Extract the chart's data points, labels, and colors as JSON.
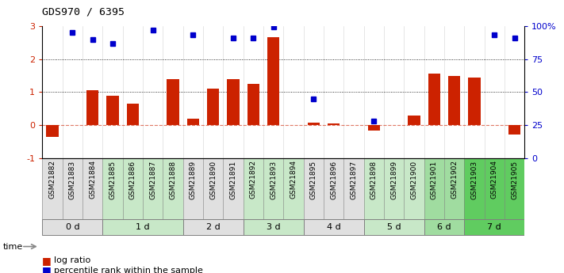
{
  "title": "GDS970 / 6395",
  "samples": [
    "GSM21882",
    "GSM21883",
    "GSM21884",
    "GSM21885",
    "GSM21886",
    "GSM21887",
    "GSM21888",
    "GSM21889",
    "GSM21890",
    "GSM21891",
    "GSM21892",
    "GSM21893",
    "GSM21894",
    "GSM21895",
    "GSM21896",
    "GSM21897",
    "GSM21898",
    "GSM21899",
    "GSM21900",
    "GSM21901",
    "GSM21902",
    "GSM21903",
    "GSM21904",
    "GSM21905"
  ],
  "log_ratio": [
    -0.35,
    0.0,
    1.05,
    0.9,
    0.65,
    0.0,
    1.4,
    0.2,
    1.1,
    1.4,
    1.25,
    2.65,
    0.0,
    0.08,
    0.05,
    0.0,
    -0.15,
    0.0,
    0.3,
    1.55,
    1.5,
    1.45,
    0.0,
    -0.28
  ],
  "percentile": [
    null,
    95,
    90,
    87,
    null,
    97,
    null,
    93,
    null,
    91,
    91,
    99,
    null,
    45,
    null,
    null,
    28,
    null,
    null,
    null,
    null,
    null,
    93,
    91
  ],
  "time_groups": [
    {
      "label": "0 d",
      "start": 0,
      "end": 3,
      "color": "#e0e0e0"
    },
    {
      "label": "1 d",
      "start": 3,
      "end": 7,
      "color": "#c8e8c8"
    },
    {
      "label": "2 d",
      "start": 7,
      "end": 10,
      "color": "#e0e0e0"
    },
    {
      "label": "3 d",
      "start": 10,
      "end": 13,
      "color": "#c8e8c8"
    },
    {
      "label": "4 d",
      "start": 13,
      "end": 16,
      "color": "#e0e0e0"
    },
    {
      "label": "5 d",
      "start": 16,
      "end": 19,
      "color": "#c8e8c8"
    },
    {
      "label": "6 d",
      "start": 19,
      "end": 21,
      "color": "#a0dca0"
    },
    {
      "label": "7 d",
      "start": 21,
      "end": 24,
      "color": "#60cc60"
    }
  ],
  "bar_color": "#cc2200",
  "dot_color": "#0000cc",
  "ylim_left": [
    -1,
    3
  ],
  "ylim_right": [
    0,
    100
  ],
  "yticks_left": [
    -1,
    0,
    1,
    2,
    3
  ],
  "yticks_right": [
    0,
    25,
    50,
    75,
    100
  ],
  "ylabel_right_labels": [
    "0",
    "25",
    "50",
    "75",
    "100%"
  ],
  "dotted_lines": [
    1,
    2
  ],
  "bar_width": 0.6,
  "figsize": [
    7.11,
    3.45
  ],
  "dpi": 100
}
